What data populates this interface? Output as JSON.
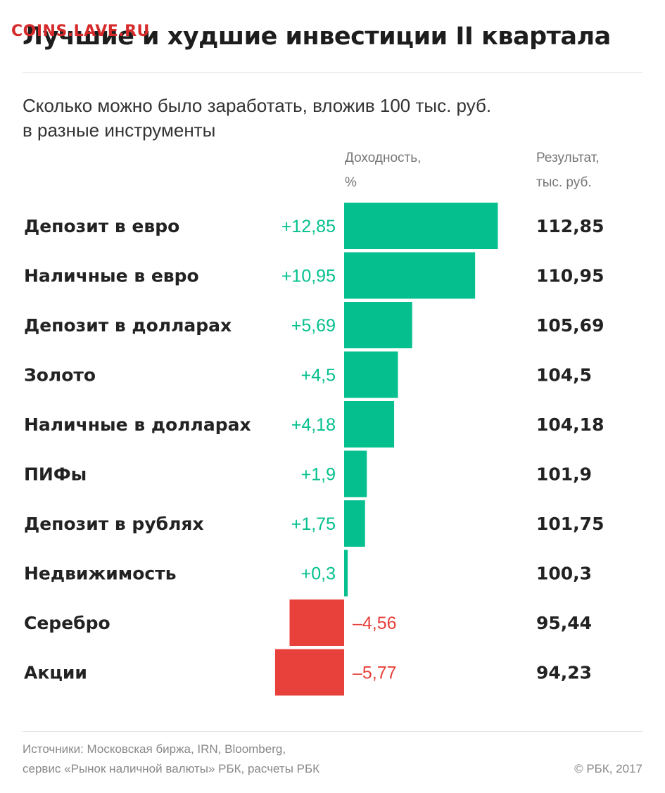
{
  "watermark": "COINS.LAVE.RU",
  "colors": {
    "positive": "#05c08e",
    "negative": "#e8403a",
    "label": "#222222"
  },
  "chart_data": {
    "type": "bar",
    "orientation": "horizontal",
    "title": "Лучшие и худшие инвестиции II квартала",
    "subtitle_lines": [
      "Сколько можно было заработать, вложив 100 тыс. руб.",
      "в разные инструменты"
    ],
    "column_headers": {
      "yield": [
        "Доходность,",
        "%"
      ],
      "result": [
        "Результат,",
        "тыс. руб."
      ]
    },
    "categories": [
      "Депозит в евро",
      "Наличные в евро",
      "Депозит в долларах",
      "Золото",
      "Наличные в долларах",
      "ПИФы",
      "Депозит в рублях",
      "Недвижимость",
      "Серебро",
      "Акции"
    ],
    "values": [
      12.85,
      10.95,
      5.69,
      4.5,
      4.18,
      1.9,
      1.75,
      0.3,
      -4.56,
      -5.77
    ],
    "value_labels": [
      "+12,85",
      "+10,95",
      "+5,69",
      "+4,5",
      "+4,18",
      "+1,9",
      "+1,75",
      "+0,3",
      "–4,56",
      "–5,77"
    ],
    "results": [
      "112,85",
      "110,95",
      "105,69",
      "104,5",
      "104,18",
      "101,9",
      "101,75",
      "100,3",
      "95,44",
      "94,23"
    ]
  },
  "footer": {
    "sources": [
      "Источники: Московская биржа, IRN, Bloomberg,",
      "сервис «Рынок наличной валюты» РБК, расчеты РБК"
    ],
    "copyright": "© РБК, 2017"
  }
}
